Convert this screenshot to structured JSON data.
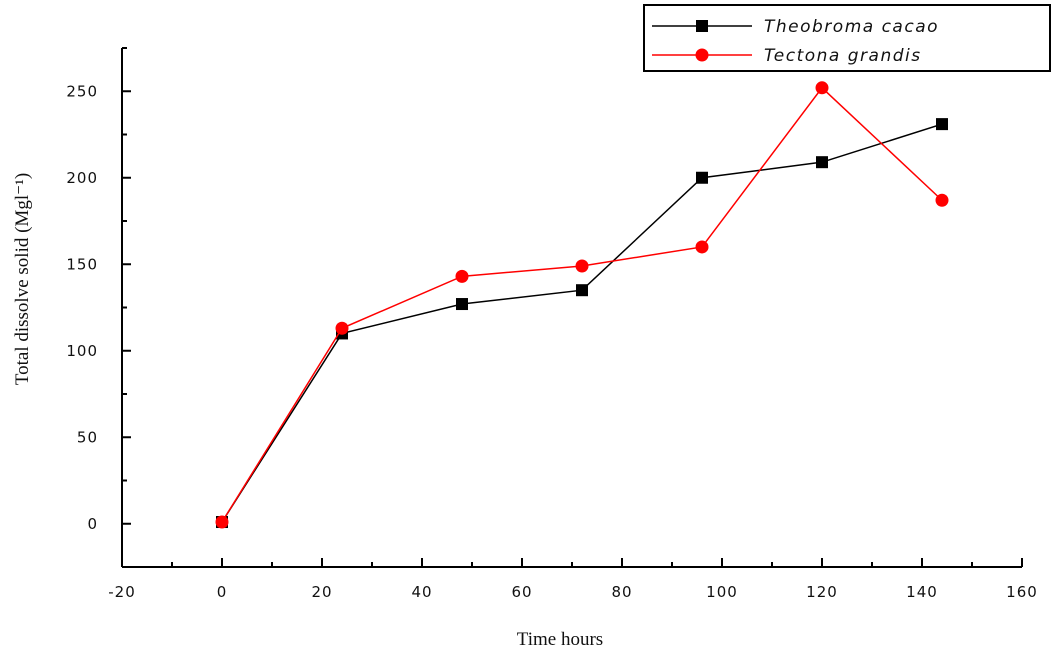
{
  "chart_data": {
    "type": "line",
    "title": "",
    "xlabel": "Time hours",
    "ylabel": "Total dissolve solid (Mgl⁻¹)",
    "xlim": [
      -20,
      160
    ],
    "ylim": [
      -25,
      275
    ],
    "x_ticks": [
      -20,
      0,
      20,
      40,
      60,
      80,
      100,
      120,
      140,
      160
    ],
    "y_ticks": [
      0,
      50,
      100,
      150,
      200,
      250
    ],
    "grid": false,
    "legend_position": "top-right",
    "x": [
      0,
      24,
      48,
      72,
      96,
      120,
      144
    ],
    "series": [
      {
        "name": "Theobroma cacao",
        "color": "#000000",
        "marker": "square",
        "values": [
          1,
          110,
          127,
          135,
          200,
          209,
          231
        ]
      },
      {
        "name": "Tectona grandis",
        "color": "#ff0000",
        "marker": "circle",
        "values": [
          1,
          113,
          143,
          149,
          160,
          252,
          187
        ]
      }
    ]
  }
}
